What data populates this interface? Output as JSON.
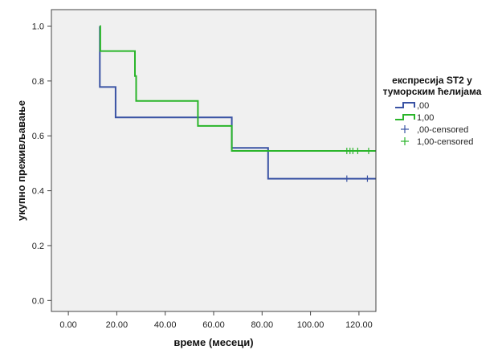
{
  "chart_data": {
    "type": "line",
    "subtype": "kaplan-meier-step",
    "title": "",
    "xlabel": "време (месеци)",
    "ylabel": "укупно преживљавање",
    "xlim": [
      -7,
      127
    ],
    "ylim": [
      -0.04,
      1.06
    ],
    "x_ticks": [
      0,
      20,
      40,
      60,
      80,
      100,
      120
    ],
    "x_tick_labels": [
      "0.00",
      "20.00",
      "40.00",
      "60.00",
      "80.00",
      "100.00",
      "120.00"
    ],
    "y_ticks": [
      0.0,
      0.2,
      0.4,
      0.6,
      0.8,
      1.0
    ],
    "y_tick_labels": [
      "0.0",
      "0.2",
      "0.4",
      "0.6",
      "0.8",
      "1.0"
    ],
    "grid": false,
    "plot_background": "#f0f0f0",
    "legend_placement": "right",
    "legend": {
      "title_lines": [
        "експресија ST2 у",
        "туморским ћелијама"
      ],
      "entries": [
        {
          "label": ",00",
          "kind": "line",
          "color": "#3a53a4"
        },
        {
          "label": "1,00",
          "kind": "line",
          "color": "#2ab52a"
        },
        {
          "label": ",00-censored",
          "kind": "censor",
          "color": "#3a53a4"
        },
        {
          "label": "1,00-censored",
          "kind": "censor",
          "color": "#2ab52a"
        }
      ]
    },
    "series": [
      {
        "label": ",00",
        "color": "#3a53a4",
        "steps": [
          [
            0,
            1.0
          ],
          [
            13,
            0.889
          ],
          [
            13,
            0.778
          ],
          [
            19.5,
            0.667
          ],
          [
            67.5,
            0.556
          ],
          [
            82.5,
            0.444
          ],
          [
            127,
            0.444
          ]
        ],
        "start_x": 13,
        "censored": [
          [
            115,
            0.444
          ],
          [
            123.5,
            0.444
          ]
        ]
      },
      {
        "label": "1,00",
        "color": "#2ab52a",
        "steps": [
          [
            13,
            1.0
          ],
          [
            13.2,
            0.909
          ],
          [
            27.5,
            0.818
          ],
          [
            28,
            0.727
          ],
          [
            53.5,
            0.636
          ],
          [
            67.5,
            0.545
          ],
          [
            127,
            0.545
          ]
        ],
        "start_x": 13,
        "censored": [
          [
            115,
            0.545
          ],
          [
            116.3,
            0.545
          ],
          [
            117.5,
            0.545
          ],
          [
            119.5,
            0.545
          ],
          [
            124,
            0.545
          ]
        ]
      }
    ]
  }
}
